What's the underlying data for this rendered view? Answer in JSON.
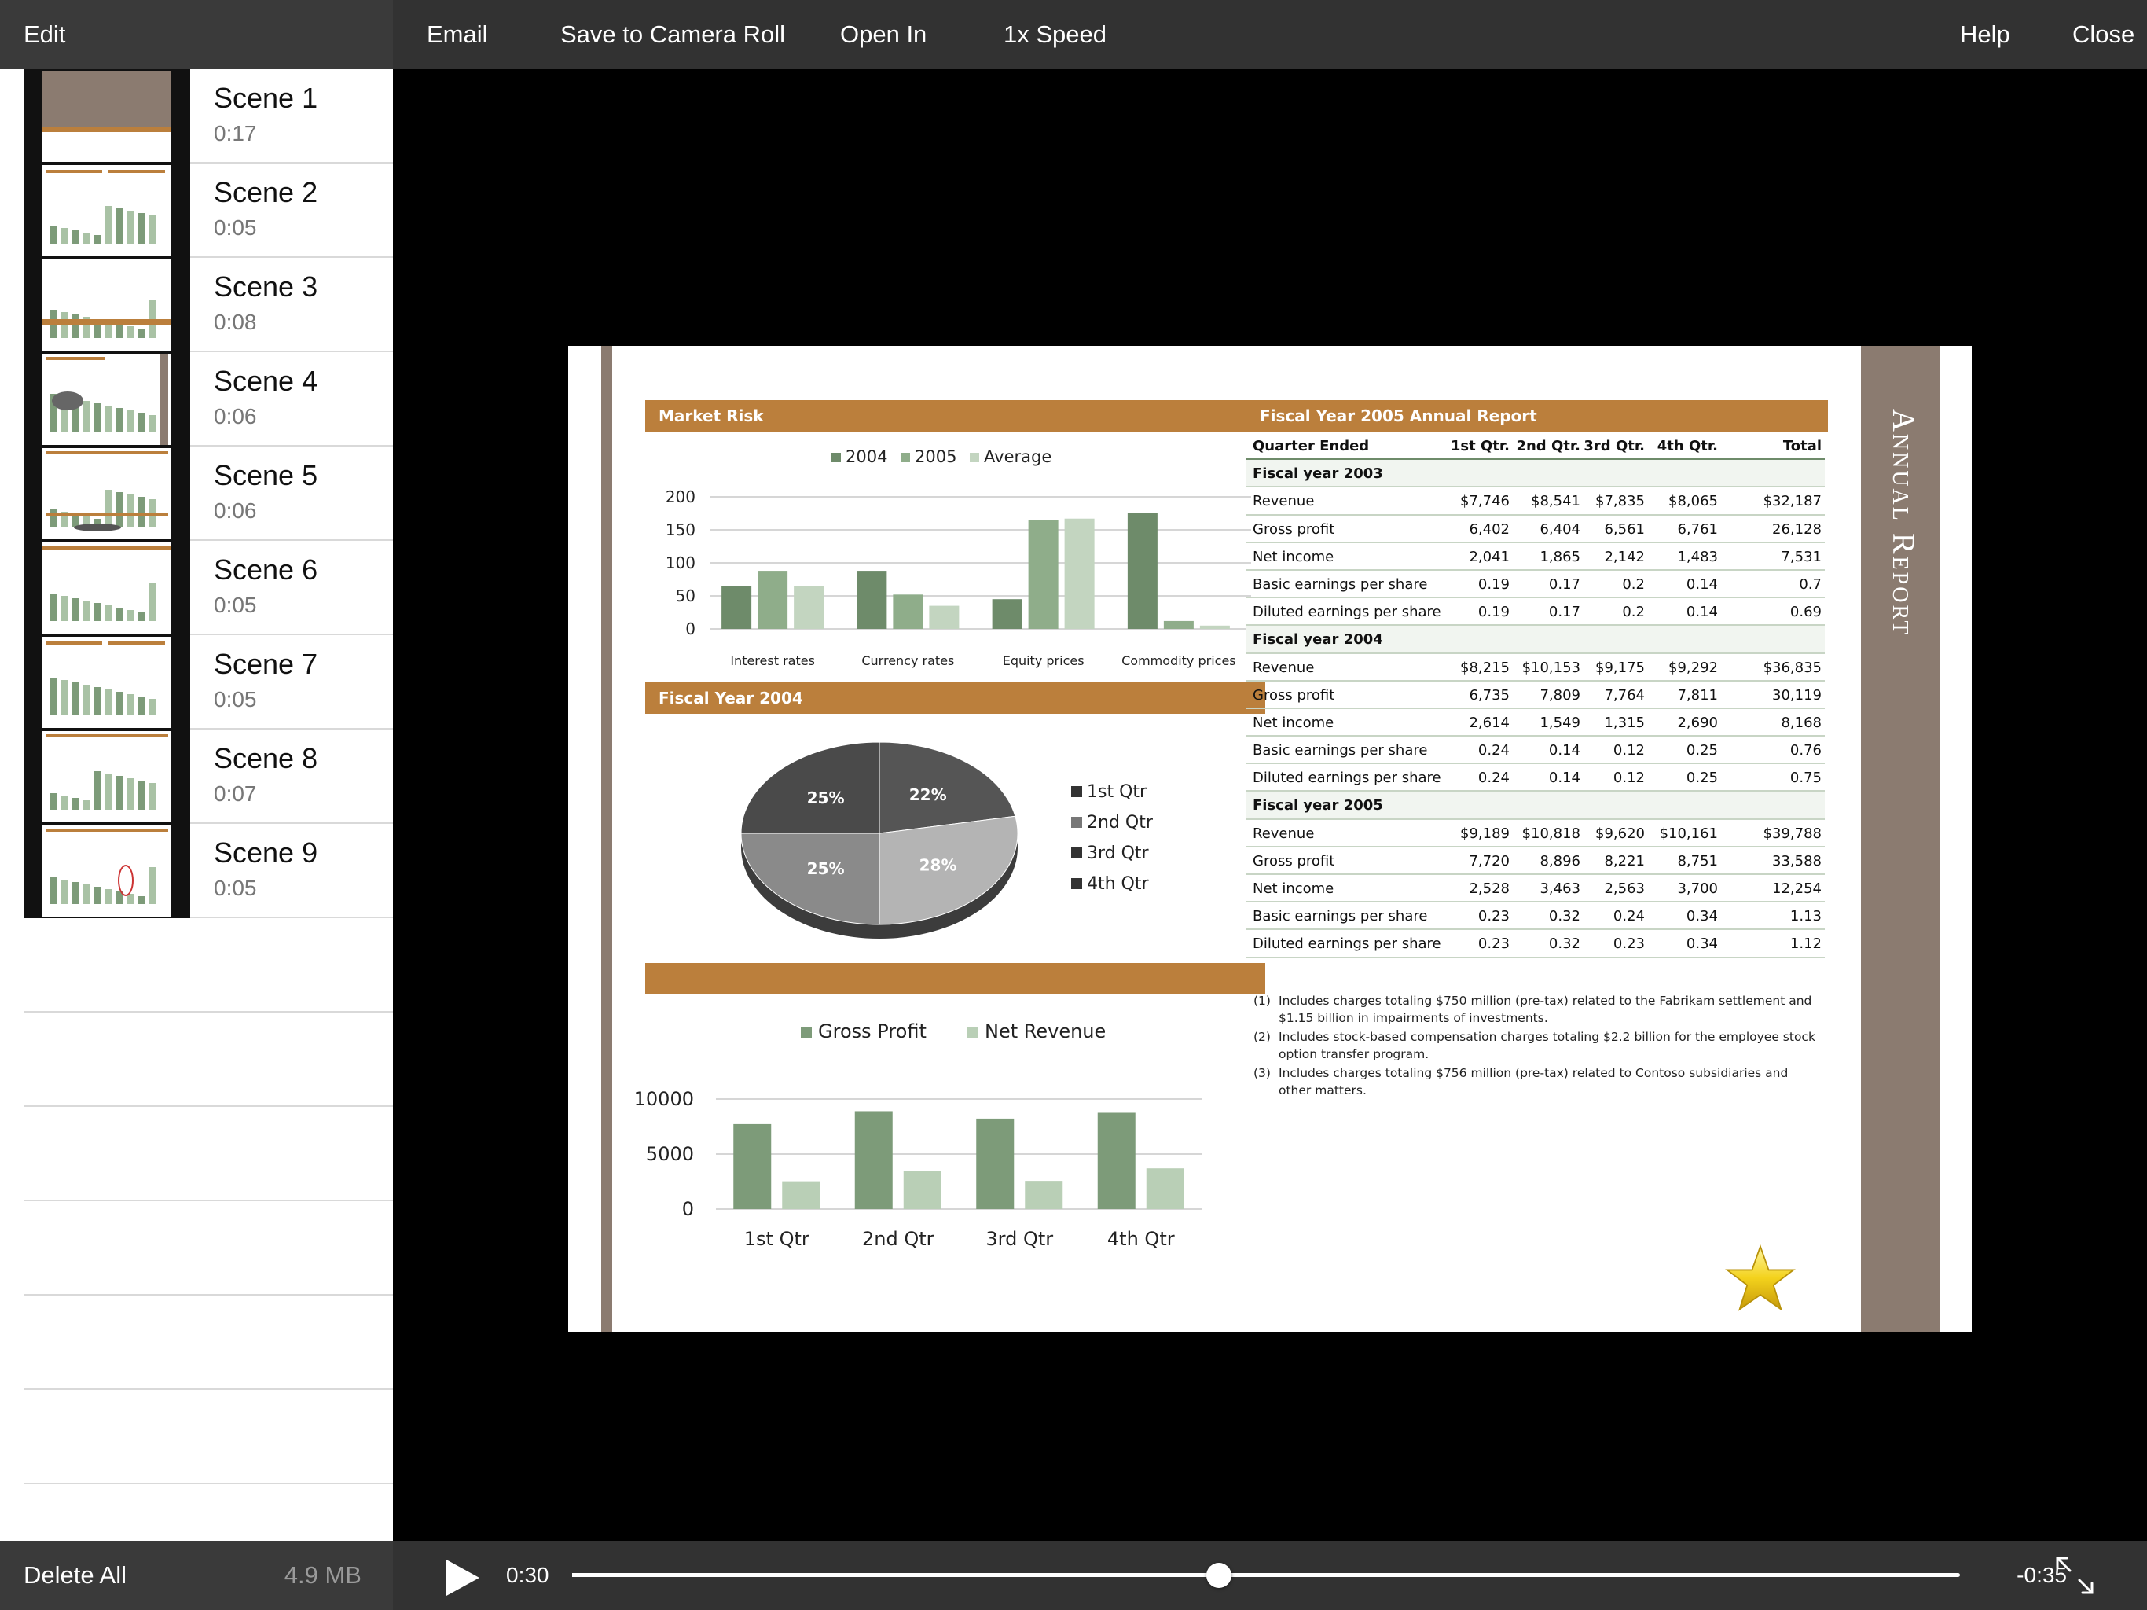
{
  "toolbar": {
    "edit": "Edit",
    "email": "Email",
    "save_to_camera_roll": "Save to Camera Roll",
    "open_in": "Open In",
    "speed": "1x Speed",
    "help": "Help",
    "close": "Close"
  },
  "scenes": [
    {
      "title": "Scene 1",
      "duration": "0:17"
    },
    {
      "title": "Scene 2",
      "duration": "0:05"
    },
    {
      "title": "Scene 3",
      "duration": "0:08"
    },
    {
      "title": "Scene 4",
      "duration": "0:06"
    },
    {
      "title": "Scene 5",
      "duration": "0:06"
    },
    {
      "title": "Scene 6",
      "duration": "0:05"
    },
    {
      "title": "Scene 7",
      "duration": "0:05"
    },
    {
      "title": "Scene 8",
      "duration": "0:07"
    },
    {
      "title": "Scene 9",
      "duration": "0:05"
    }
  ],
  "footer": {
    "delete_all": "Delete All",
    "storage": "4.9 MB"
  },
  "player": {
    "current_time": "0:30",
    "remaining_time": "-0:35",
    "progress": 0.466
  },
  "colors": {
    "accent": "#bb7f3c",
    "sidebar_bar": "#8b7b70",
    "series_dark": "#6e8b6a",
    "series_mid": "#8fad8a",
    "series_light": "#c3d5c0"
  },
  "icons": {
    "play": "play-icon",
    "fullscreen": "fullscreen-icon",
    "star": "star-icon"
  },
  "slide": {
    "market_risk_title": "Market Risk",
    "fy2004_title": "Fiscal Year 2004",
    "fy2005_title": "Fiscal Year 2005 Annual Report",
    "annual_report": "Annual Report",
    "table": {
      "headers": [
        "Quarter Ended",
        "1st Qtr.",
        "2nd Qtr.",
        "3rd Qtr.",
        "4th Qtr.",
        "Total"
      ],
      "sections": [
        {
          "name": "Fiscal year 2003",
          "rows": [
            {
              "label": "Revenue",
              "values": [
                "$7,746",
                "$8,541",
                "$7,835",
                "$8,065",
                "$32,187"
              ]
            },
            {
              "label": "Gross profit",
              "values": [
                "6,402",
                "6,404",
                "6,561",
                "6,761",
                "26,128"
              ]
            },
            {
              "label": "Net income",
              "values": [
                "2,041",
                "1,865",
                "2,142",
                "1,483",
                "7,531"
              ]
            },
            {
              "label": "Basic earnings per share",
              "values": [
                "0.19",
                "0.17",
                "0.2",
                "0.14",
                "0.7"
              ]
            },
            {
              "label": "Diluted earnings per share",
              "values": [
                "0.19",
                "0.17",
                "0.2",
                "0.14",
                "0.69"
              ]
            }
          ]
        },
        {
          "name": "Fiscal year 2004",
          "rows": [
            {
              "label": "Revenue",
              "values": [
                "$8,215",
                "$10,153",
                "$9,175",
                "$9,292",
                "$36,835"
              ]
            },
            {
              "label": "Gross profit",
              "values": [
                "6,735",
                "7,809",
                "7,764",
                "7,811",
                "30,119"
              ]
            },
            {
              "label": "Net income",
              "values": [
                "2,614",
                "1,549",
                "1,315",
                "2,690",
                "8,168"
              ]
            },
            {
              "label": "Basic earnings per share",
              "values": [
                "0.24",
                "0.14",
                "0.12",
                "0.25",
                "0.76"
              ]
            },
            {
              "label": "Diluted earnings per share",
              "values": [
                "0.24",
                "0.14",
                "0.12",
                "0.25",
                "0.75"
              ]
            }
          ]
        },
        {
          "name": "Fiscal year 2005",
          "rows": [
            {
              "label": "Revenue",
              "values": [
                "$9,189",
                "$10,818",
                "$9,620",
                "$10,161",
                "$39,788"
              ]
            },
            {
              "label": "Gross profit",
              "values": [
                "7,720",
                "8,896",
                "8,221",
                "8,751",
                "33,588"
              ]
            },
            {
              "label": "Net income",
              "values": [
                "2,528",
                "3,463",
                "2,563",
                "3,700",
                "12,254"
              ]
            },
            {
              "label": "Basic earnings per share",
              "values": [
                "0.23",
                "0.32",
                "0.24",
                "0.34",
                "1.13"
              ]
            },
            {
              "label": "Diluted earnings per share",
              "values": [
                "0.23",
                "0.32",
                "0.23",
                "0.34",
                "1.12"
              ]
            }
          ]
        }
      ]
    },
    "footnotes": [
      {
        "num": "(1)",
        "text": "Includes charges totaling $750 million (pre-tax) related to the Fabrikam settlement and $1.15 billion in impairments of investments."
      },
      {
        "num": "(2)",
        "text": "Includes stock-based compensation charges totaling $2.2 billion for the employee stock option transfer program."
      },
      {
        "num": "(3)",
        "text": "Includes charges totaling $756 million (pre-tax) related to Contoso subsidiaries and other matters."
      }
    ]
  },
  "chart_data": [
    {
      "type": "bar",
      "title": "Market Risk",
      "categories": [
        "Interest rates",
        "Currency rates",
        "Equity prices",
        "Commodity prices"
      ],
      "series": [
        {
          "name": "2004",
          "values": [
            65,
            88,
            45,
            175
          ],
          "color": "#6e8b6a"
        },
        {
          "name": "2005",
          "values": [
            88,
            52,
            165,
            12
          ],
          "color": "#8fad8a"
        },
        {
          "name": "Average",
          "values": [
            65,
            35,
            167,
            5
          ],
          "color": "#c3d5c0"
        }
      ],
      "ylim": [
        0,
        200
      ],
      "yticks": [
        0,
        50,
        100,
        150,
        200
      ],
      "legend": "top"
    },
    {
      "type": "pie",
      "title": "Fiscal Year 2004",
      "labels": [
        "1st Qtr",
        "2nd Qtr",
        "3rd Qtr",
        "4th Qtr"
      ],
      "values": [
        22,
        28,
        25,
        25
      ],
      "colors": [
        "#555555",
        "#b4b4b4",
        "#8a8a8a",
        "#4a4a4a"
      ],
      "legend": "right"
    },
    {
      "type": "bar",
      "categories": [
        "1st Qtr",
        "2nd Qtr",
        "3rd Qtr",
        "4th Qtr"
      ],
      "series": [
        {
          "name": "Gross Profit",
          "values": [
            7720,
            8896,
            8221,
            8751
          ],
          "color": "#7d9b79"
        },
        {
          "name": "Net Revenue",
          "values": [
            2528,
            3463,
            2563,
            3700
          ],
          "color": "#b9cfb6"
        }
      ],
      "ylim": [
        0,
        10000
      ],
      "yticks": [
        0,
        5000,
        10000
      ],
      "legend": "top"
    }
  ]
}
